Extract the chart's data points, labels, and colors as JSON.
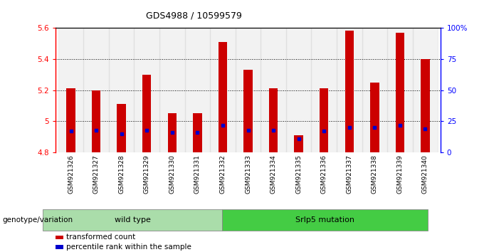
{
  "title": "GDS4988 / 10599579",
  "samples": [
    "GSM921326",
    "GSM921327",
    "GSM921328",
    "GSM921329",
    "GSM921330",
    "GSM921331",
    "GSM921332",
    "GSM921333",
    "GSM921334",
    "GSM921335",
    "GSM921336",
    "GSM921337",
    "GSM921338",
    "GSM921339",
    "GSM921340"
  ],
  "transformed_counts": [
    5.21,
    5.2,
    5.11,
    5.3,
    5.05,
    5.05,
    5.51,
    5.33,
    5.21,
    4.91,
    5.21,
    5.58,
    5.25,
    5.57,
    5.4
  ],
  "percentile_ranks": [
    17,
    18,
    15,
    18,
    16,
    16,
    22,
    18,
    18,
    11,
    17,
    20,
    20,
    22,
    19
  ],
  "y_min": 4.8,
  "y_max": 5.6,
  "y_ticks": [
    4.8,
    5.0,
    5.2,
    5.4,
    5.6
  ],
  "y_tick_labels": [
    "4.8",
    "5",
    "5.2",
    "5.4",
    "5.6"
  ],
  "right_y_ticks": [
    0,
    25,
    50,
    75,
    100
  ],
  "right_y_labels": [
    "0",
    "25",
    "50",
    "75",
    "100%"
  ],
  "bar_color": "#cc0000",
  "percentile_color": "#0000cc",
  "bar_width": 0.35,
  "legend_items": [
    {
      "label": "transformed count",
      "color": "#cc0000"
    },
    {
      "label": "percentile rank within the sample",
      "color": "#0000cc"
    }
  ],
  "plot_bg": "#ffffff",
  "genotype_label": "genotype/variation",
  "wt_color": "#aaddaa",
  "sr_color": "#44cc44",
  "wt_label": "wild type",
  "sr_label": "Srlp5 mutation"
}
